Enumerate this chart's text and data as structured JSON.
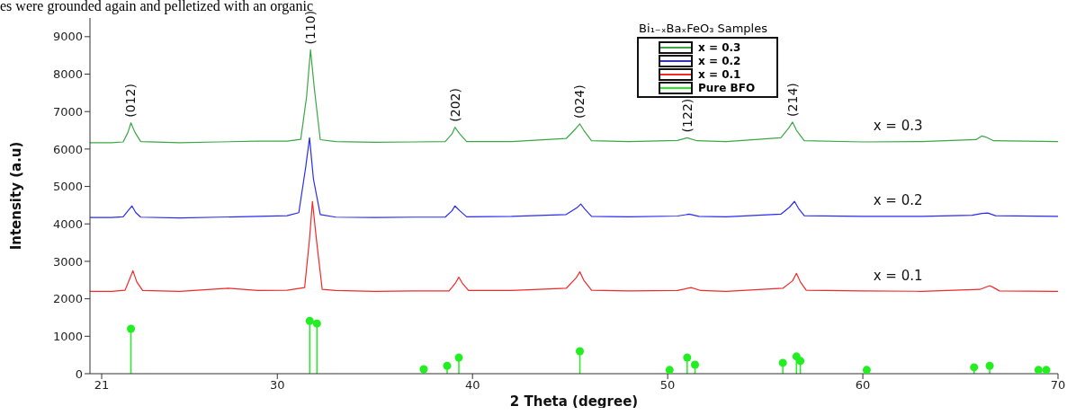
{
  "chart_data": {
    "type": "line",
    "xlabel": "2 Theta (degree)",
    "ylabel": "Intensity (a.u)",
    "legend_title": "Bi₁₋ₓBaₓFeO₃ Samples",
    "legend": "top",
    "grid": false,
    "line_style": "solid",
    "xlim": [
      20.4,
      70
    ],
    "xticks": [
      21,
      30,
      40,
      50,
      60,
      70
    ],
    "ylim": [
      0,
      9500
    ],
    "yticks": [
      0,
      1000,
      2000,
      3000,
      4000,
      5000,
      6000,
      7000,
      8000,
      9000
    ],
    "series": [
      {
        "name": "x = 0.3",
        "color": "#3aa844",
        "x": [
          20.4,
          21.5,
          22.1,
          22.35,
          22.5,
          22.7,
          23.0,
          25,
          27,
          29,
          30.5,
          31.2,
          31.5,
          31.7,
          31.9,
          32.2,
          33,
          35,
          37,
          38.6,
          38.95,
          39.1,
          39.35,
          39.7,
          42,
          44.8,
          45.3,
          45.5,
          45.7,
          46.1,
          48,
          50.5,
          51.0,
          51.5,
          53,
          55.8,
          56.2,
          56.4,
          56.6,
          57.0,
          60,
          63,
          65.8,
          66.1,
          66.3,
          66.7,
          70
        ],
        "values": [
          6170,
          6170,
          6190,
          6450,
          6700,
          6450,
          6200,
          6170,
          6190,
          6210,
          6210,
          6260,
          7400,
          8650,
          7600,
          6250,
          6200,
          6180,
          6190,
          6200,
          6400,
          6580,
          6400,
          6200,
          6200,
          6280,
          6550,
          6670,
          6500,
          6220,
          6200,
          6230,
          6300,
          6220,
          6200,
          6300,
          6560,
          6720,
          6500,
          6220,
          6190,
          6200,
          6250,
          6350,
          6320,
          6220,
          6200
        ]
      },
      {
        "name": "x = 0.2",
        "color": "#2a2af0",
        "x": [
          20.4,
          21.5,
          22.1,
          22.35,
          22.55,
          22.75,
          23.0,
          25,
          27,
          29,
          30.5,
          31.1,
          31.45,
          31.65,
          31.85,
          32.2,
          33,
          35,
          37,
          38.6,
          38.95,
          39.1,
          39.35,
          39.7,
          42,
          44.8,
          45.35,
          45.55,
          45.75,
          46.1,
          48,
          50.5,
          51.1,
          51.6,
          53,
          55.8,
          56.25,
          56.5,
          56.7,
          57.0,
          60,
          63,
          65.6,
          66.1,
          66.4,
          66.8,
          70
        ],
        "values": [
          4170,
          4170,
          4190,
          4350,
          4480,
          4300,
          4180,
          4160,
          4180,
          4200,
          4220,
          4300,
          5500,
          6300,
          5200,
          4250,
          4180,
          4170,
          4180,
          4180,
          4350,
          4480,
          4350,
          4190,
          4200,
          4250,
          4430,
          4530,
          4400,
          4200,
          4190,
          4210,
          4260,
          4200,
          4190,
          4260,
          4450,
          4600,
          4420,
          4220,
          4200,
          4200,
          4230,
          4280,
          4290,
          4220,
          4200
        ]
      },
      {
        "name": "x = 0.1",
        "color": "#f02a2a",
        "x": [
          20.4,
          21.5,
          22.2,
          22.45,
          22.6,
          22.8,
          23.1,
          25,
          27.5,
          29,
          30.5,
          31.4,
          31.65,
          31.8,
          32.0,
          32.3,
          33,
          35,
          37,
          38.8,
          39.1,
          39.3,
          39.5,
          39.8,
          42,
          44.8,
          45.3,
          45.5,
          45.7,
          46.1,
          48,
          50.5,
          51.2,
          51.7,
          53,
          55.9,
          56.4,
          56.6,
          56.8,
          57.1,
          60,
          63,
          66.0,
          66.5,
          66.7,
          67.0,
          70
        ],
        "values": [
          2200,
          2200,
          2230,
          2550,
          2750,
          2450,
          2220,
          2200,
          2280,
          2220,
          2230,
          2300,
          3600,
          4600,
          3600,
          2250,
          2220,
          2200,
          2210,
          2210,
          2400,
          2580,
          2400,
          2220,
          2220,
          2280,
          2550,
          2720,
          2500,
          2230,
          2210,
          2220,
          2300,
          2220,
          2200,
          2280,
          2480,
          2680,
          2450,
          2230,
          2210,
          2200,
          2250,
          2350,
          2300,
          2210,
          2200
        ]
      },
      {
        "name": "Pure BFO",
        "type": "lollipop",
        "marker": "circle",
        "color": "#22ee22",
        "x": [
          22.5,
          31.66,
          32.03,
          37.5,
          38.7,
          39.3,
          45.5,
          50.1,
          51.0,
          51.4,
          55.9,
          56.6,
          56.8,
          60.2,
          65.7,
          66.5,
          69.0,
          69.4
        ],
        "values": [
          1200,
          1410,
          1340,
          120,
          210,
          430,
          600,
          100,
          430,
          240,
          290,
          460,
          340,
          100,
          170,
          210,
          100,
          100
        ]
      }
    ],
    "annotations": [
      "es were grounded again and pelletized with an organic",
      {
        "text": "(012)",
        "x": 22.5,
        "y": 6700
      },
      {
        "text": "(110)",
        "x": 31.7,
        "y": 8650
      },
      {
        "text": "(202)",
        "x": 39.1,
        "y": 6580
      },
      {
        "text": "(024)",
        "x": 45.5,
        "y": 6670
      },
      {
        "text": "(122)",
        "x": 51.0,
        "y": 6300
      },
      {
        "text": "(214)",
        "x": 56.4,
        "y": 6720
      },
      {
        "text": "x = 0.3",
        "x": 63,
        "y": 6200
      },
      {
        "text": "x = 0.2",
        "x": 63,
        "y": 4200
      },
      {
        "text": "x = 0.1",
        "x": 63,
        "y": 2200
      }
    ]
  }
}
